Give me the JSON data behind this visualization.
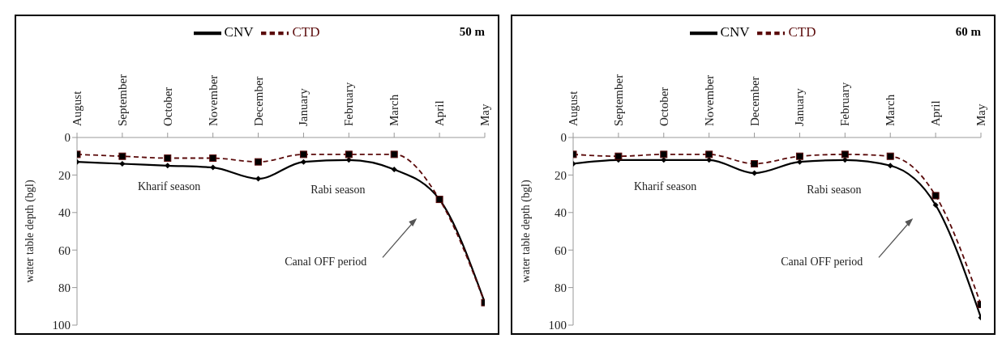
{
  "chart_data": [
    {
      "type": "line",
      "title": "50 m",
      "ylabel": "water table depth (bgl)",
      "categories": [
        "August",
        "September",
        "October",
        "November",
        "December",
        "January",
        "February",
        "March",
        "April",
        "May"
      ],
      "ylim": [
        100,
        0
      ],
      "yticks": [
        0,
        20,
        40,
        60,
        80,
        100
      ],
      "legend": "top",
      "grid": false,
      "series": [
        {
          "name": "CNV",
          "color": "#000000",
          "marker": "diamond",
          "line_style": "solid",
          "values": [
            13,
            14,
            15,
            16,
            22,
            13,
            12,
            17,
            33,
            88
          ]
        },
        {
          "name": "CTD",
          "color": "#5a0a0a",
          "marker": "square",
          "line_style": "dashed",
          "values": [
            9,
            10,
            11,
            11,
            13,
            9,
            9,
            9,
            33,
            88
          ]
        }
      ],
      "annotations": [
        "Kharif season",
        "Rabi season",
        "Canal OFF period"
      ]
    },
    {
      "type": "line",
      "title": "60 m",
      "ylabel": "water table depth (bgl)",
      "categories": [
        "August",
        "September",
        "October",
        "November",
        "December",
        "January",
        "February",
        "March",
        "April",
        "May"
      ],
      "ylim": [
        100,
        0
      ],
      "yticks": [
        0,
        20,
        40,
        60,
        80,
        100
      ],
      "legend": "top",
      "grid": false,
      "series": [
        {
          "name": "CNV",
          "color": "#000000",
          "marker": "diamond",
          "line_style": "solid",
          "values": [
            14,
            12,
            12,
            12,
            19,
            13,
            12,
            15,
            36,
            96
          ]
        },
        {
          "name": "CTD",
          "color": "#5a0a0a",
          "marker": "square",
          "line_style": "dashed",
          "values": [
            9,
            10,
            9,
            9,
            14,
            10,
            9,
            10,
            31,
            89
          ]
        }
      ],
      "annotations": [
        "Kharif season",
        "Rabi season",
        "Canal OFF period"
      ]
    }
  ]
}
